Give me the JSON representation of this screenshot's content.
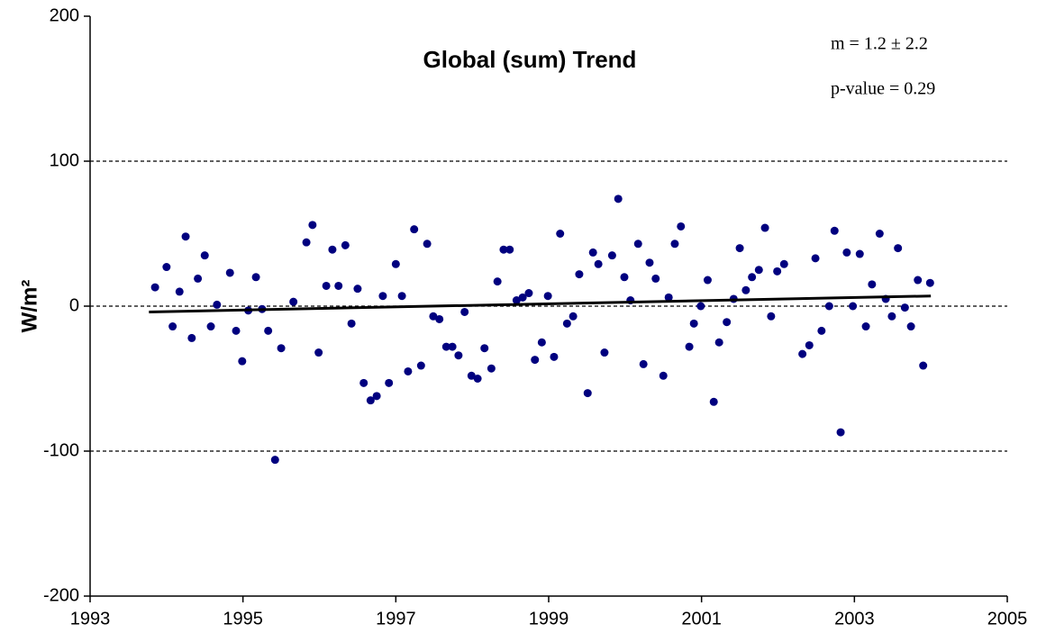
{
  "chart_data": {
    "type": "scatter",
    "title": "Global (sum) Trend",
    "y_label": "W/m²",
    "annotations": [
      "m = 1.2 ± 2.2",
      "p-value = 0.29"
    ],
    "color": "#00007f",
    "x": [
      1993.85,
      1994.0,
      1994.08,
      1994.17,
      1994.25,
      1994.33,
      1994.41,
      1994.5,
      1994.58,
      1994.66,
      1994.83,
      1994.91,
      1994.99,
      1995.07,
      1995.17,
      1995.25,
      1995.33,
      1995.42,
      1995.5,
      1995.66,
      1995.83,
      1995.91,
      1995.99,
      1996.09,
      1996.17,
      1996.25,
      1996.34,
      1996.42,
      1996.5,
      1996.58,
      1996.67,
      1996.75,
      1996.83,
      1996.91,
      1997.0,
      1997.08,
      1997.16,
      1997.24,
      1997.33,
      1997.41,
      1997.49,
      1997.57,
      1997.66,
      1997.74,
      1997.82,
      1997.9,
      1997.99,
      1998.07,
      1998.16,
      1998.25,
      1998.33,
      1998.41,
      1998.49,
      1998.58,
      1998.66,
      1998.74,
      1998.82,
      1998.91,
      1998.99,
      1999.07,
      1999.15,
      1999.24,
      1999.32,
      1999.4,
      1999.51,
      1999.58,
      1999.65,
      1999.73,
      1999.83,
      1999.91,
      1999.99,
      2000.07,
      2000.17,
      2000.24,
      2000.32,
      2000.4,
      2000.5,
      2000.57,
      2000.65,
      2000.73,
      2000.84,
      2000.9,
      2000.99,
      2001.08,
      2001.16,
      2001.23,
      2001.33,
      2001.42,
      2001.5,
      2001.58,
      2001.66,
      2001.75,
      2001.83,
      2001.91,
      2001.99,
      2002.08,
      2002.32,
      2002.41,
      2002.49,
      2002.57,
      2002.67,
      2002.74,
      2002.82,
      2002.9,
      2002.98,
      2003.07,
      2003.15,
      2003.23,
      2003.33,
      2003.41,
      2003.49,
      2003.57,
      2003.66,
      2003.74,
      2003.83,
      2003.9,
      2003.99
    ],
    "values": [
      13,
      27,
      -14,
      10,
      48,
      -22,
      19,
      35,
      -14,
      1,
      23,
      -17,
      -38,
      -3,
      20,
      -2,
      -17,
      -106,
      -29,
      3,
      44,
      56,
      -32,
      14,
      39,
      14,
      42,
      -12,
      12,
      -53,
      -65,
      -62,
      7,
      -53,
      29,
      7,
      -45,
      53,
      -41,
      43,
      -7,
      -9,
      -28,
      -28,
      -34,
      -4,
      -48,
      -50,
      -29,
      -43,
      17,
      39,
      39,
      4,
      6,
      9,
      -37,
      -25,
      7,
      -35,
      50,
      -12,
      -7,
      22,
      -60,
      37,
      29,
      -32,
      35,
      74,
      20,
      4,
      43,
      -40,
      30,
      19,
      -48,
      6,
      43,
      55,
      -28,
      -12,
      0,
      18,
      -66,
      -25,
      -11,
      5,
      40,
      11,
      20,
      25,
      54,
      -7,
      24,
      29,
      -33,
      -27,
      33,
      -17,
      0,
      52,
      -87,
      37,
      0,
      36,
      -14,
      15,
      50,
      5,
      -7,
      40,
      -1,
      -14,
      18,
      -41,
      16
    ],
    "trend": {
      "x": [
        1993.77,
        2004.0
      ],
      "values": [
        -4,
        7
      ],
      "color": "#000000"
    },
    "xlim": [
      1993,
      2005
    ],
    "xticks": [
      1993,
      1995,
      1997,
      1999,
      2001,
      2003,
      2005
    ],
    "ylim": [
      -200,
      200
    ],
    "yticks": [
      -200,
      -100,
      0,
      100,
      200
    ],
    "grid_values": [
      -100,
      0,
      100
    ]
  }
}
